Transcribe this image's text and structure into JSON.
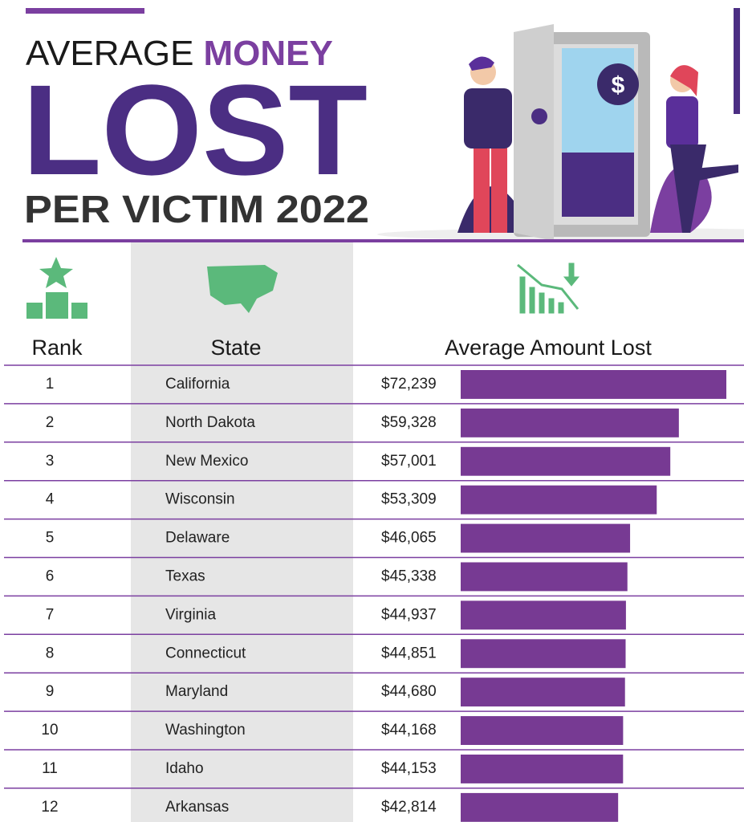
{
  "chart_data": {
    "type": "bar",
    "title_parts": [
      "AVERAGE",
      "MONEY",
      "LOST",
      "PER VICTIM 2022"
    ],
    "column_headers": [
      "Rank",
      "State",
      "Average Amount Lost"
    ],
    "ranks": [
      1,
      2,
      3,
      4,
      5,
      6,
      7,
      8,
      9,
      10,
      11,
      12
    ],
    "categories": [
      "California",
      "North Dakota",
      "New Mexico",
      "Wisconsin",
      "Delaware",
      "Texas",
      "Virginia",
      "Connecticut",
      "Maryland",
      "Washington",
      "Idaho",
      "Arkansas"
    ],
    "values": [
      72239,
      59328,
      57001,
      53309,
      46065,
      45338,
      44937,
      44851,
      44680,
      44168,
      44153,
      42814
    ],
    "value_labels": [
      "$72,239",
      "$59,328",
      "$57,001",
      "$53,309",
      "$46,065",
      "$45,338",
      "$44,937",
      "$44,851",
      "$44,680",
      "$44,168",
      "$44,153",
      "$42,814"
    ],
    "color": "#773a93"
  }
}
